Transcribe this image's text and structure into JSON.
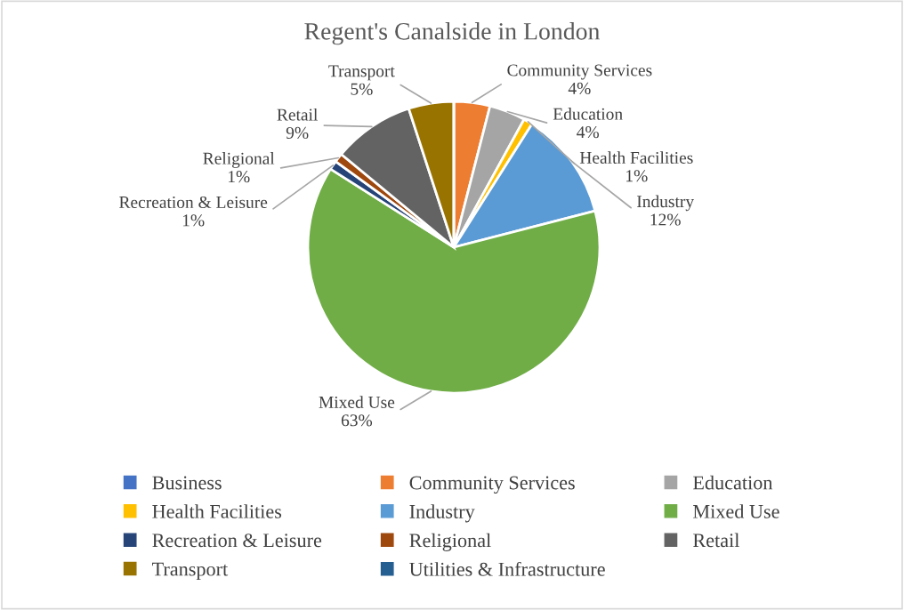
{
  "chart_data": {
    "type": "pie",
    "title": "Regent's Canalside in London",
    "categories": [
      "Business",
      "Community Services",
      "Education",
      "Health Facilities",
      "Industry",
      "Mixed Use",
      "Recreation & Leisure",
      "Religional",
      "Retail",
      "Transport",
      "Utilities & Infrastructure"
    ],
    "values": [
      0,
      4,
      4,
      1,
      12,
      63,
      1,
      1,
      9,
      5,
      0
    ],
    "value_labels": [
      null,
      "4%",
      "4%",
      "1%",
      "12%",
      "63%",
      "1%",
      "1%",
      "9%",
      "5%",
      null
    ],
    "colors": [
      "#4472c4",
      "#ed7d31",
      "#a5a5a5",
      "#ffc000",
      "#5b9bd5",
      "#70ad47",
      "#264478",
      "#9e480e",
      "#636363",
      "#997300",
      "#255e91"
    ],
    "legend": "bottom"
  }
}
